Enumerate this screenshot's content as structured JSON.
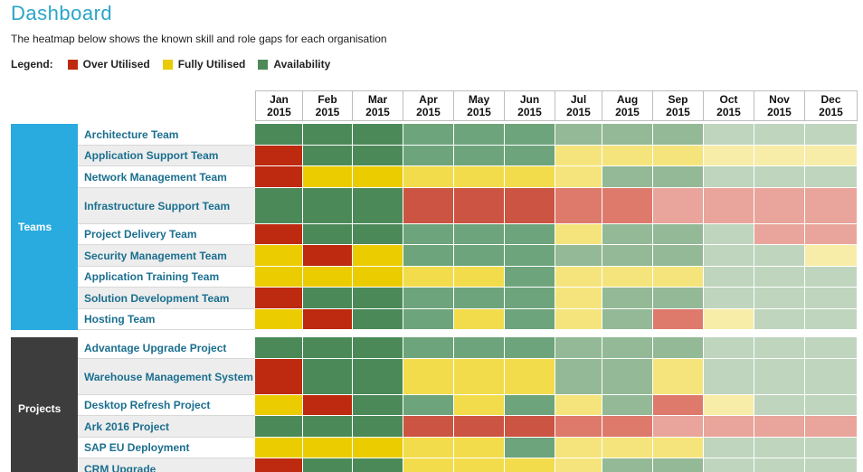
{
  "title": "Dashboard",
  "subtitle": "The heatmap below shows the known skill and role gaps for each organisation",
  "legend": {
    "label": "Legend:",
    "items": [
      {
        "label": "Over Utilised",
        "color": "#bd2a0f"
      },
      {
        "label": "Fully Utilised",
        "color": "#e8cc00"
      },
      {
        "label": "Availability",
        "color": "#4d8a57"
      }
    ]
  },
  "colors": {
    "teams_group": "#29abe0",
    "projects_group": "#3d3d3d",
    "levels": {
      "O": "#bd2a0f",
      "o": "#cc5442",
      "p": "#dd7a6c",
      "q": "#e9a59b",
      "F": "#ebcc00",
      "f": "#f2dc4c",
      "g": "#f5e47c",
      "h": "#f8eda8",
      "A": "#4b8a58",
      "a": "#6ea47b",
      "b": "#93b996",
      "c": "#bfd5be"
    }
  },
  "chart_data": {
    "type": "heatmap",
    "title": "Dashboard",
    "months": [
      {
        "mon": "Jan",
        "year": "2015"
      },
      {
        "mon": "Feb",
        "year": "2015"
      },
      {
        "mon": "Mar",
        "year": "2015"
      },
      {
        "mon": "Apr",
        "year": "2015"
      },
      {
        "mon": "May",
        "year": "2015"
      },
      {
        "mon": "Jun",
        "year": "2015"
      },
      {
        "mon": "Jul",
        "year": "2015"
      },
      {
        "mon": "Aug",
        "year": "2015"
      },
      {
        "mon": "Sep",
        "year": "2015"
      },
      {
        "mon": "Oct",
        "year": "2015"
      },
      {
        "mon": "Nov",
        "year": "2015"
      },
      {
        "mon": "Dec",
        "year": "2015"
      }
    ],
    "groups": [
      {
        "name": "Teams",
        "rows": [
          {
            "name": "Architecture Team",
            "cells": "AAAaaabbbccc"
          },
          {
            "name": "Application Support Team",
            "cells": "OAAaaaggghhh"
          },
          {
            "name": "Network Management Team",
            "cells": "OFFfffgbbccc"
          },
          {
            "name": "Infrastructure Support Team",
            "cells": "AAAoooppqqqq"
          },
          {
            "name": "Project Delivery Team",
            "cells": "OAAaaagbbcqq"
          },
          {
            "name": "Security Management Team",
            "cells": "FOFaaabbbcch"
          },
          {
            "name": "Application Training Team",
            "cells": "FFFffagggccc"
          },
          {
            "name": "Solution Development Team",
            "cells": "OAAaaagbbccc"
          },
          {
            "name": "Hosting Team",
            "cells": "FOAafagbphcc"
          }
        ]
      },
      {
        "name": "Projects",
        "rows": [
          {
            "name": "Advantage Upgrade Project",
            "cells": "AAAaaabbbccc"
          },
          {
            "name": "Warehouse Management System",
            "cells": "OAAfffbbgccc"
          },
          {
            "name": "Desktop Refresh Project",
            "cells": "FOAafagbphcc"
          },
          {
            "name": "Ark 2016 Project",
            "cells": "AAAoooppqqqq"
          },
          {
            "name": "SAP EU Deployment",
            "cells": "FFFffagggccc"
          },
          {
            "name": "CRM Upgrade",
            "cells": "OAAfffgbbccc"
          }
        ]
      }
    ]
  }
}
